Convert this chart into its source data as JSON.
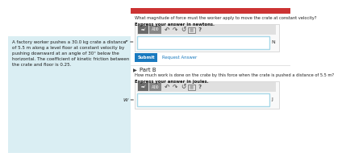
{
  "bg_left": "#daeef3",
  "bg_right": "#f5f5f5",
  "bg_main": "#ffffff",
  "left_text": "A factory worker pushes a 30.0 kg crate a distance\nof 5.5 m along a level floor at constant velocity by\npushing downward at an angle of 30° below the\nhorizontal. The coefficient of kinetic friction between\nthe crate and floor is 0.25.",
  "q1_line1": "What magnitude of force must the worker apply to move the crate at constant velocity?",
  "q1_bold": "Express your answer in newtons.",
  "q2_line1": "How much work is done on the crate by this force when the crate is pushed a distance of 5.5 m?",
  "q2_bold": "Express your answer in joules.",
  "f_label": "F =",
  "f_unit": "N",
  "w_label": "W =",
  "w_unit": "J",
  "submit_text": "Submit",
  "submit_bg": "#1a7abf",
  "request_text": "Request Answer",
  "request_color": "#1a7abf",
  "partb_label": "Part B",
  "toolbar_dark": "#6d6d6d",
  "toolbar_light": "#888888",
  "input_border_color": "#a8d8e8",
  "outer_box_border": "#cccccc",
  "icon1_label": "π√",
  "icon2_label": "AΣΦ",
  "top_red": "#cc3333",
  "gray_bg": "#eeeeee"
}
